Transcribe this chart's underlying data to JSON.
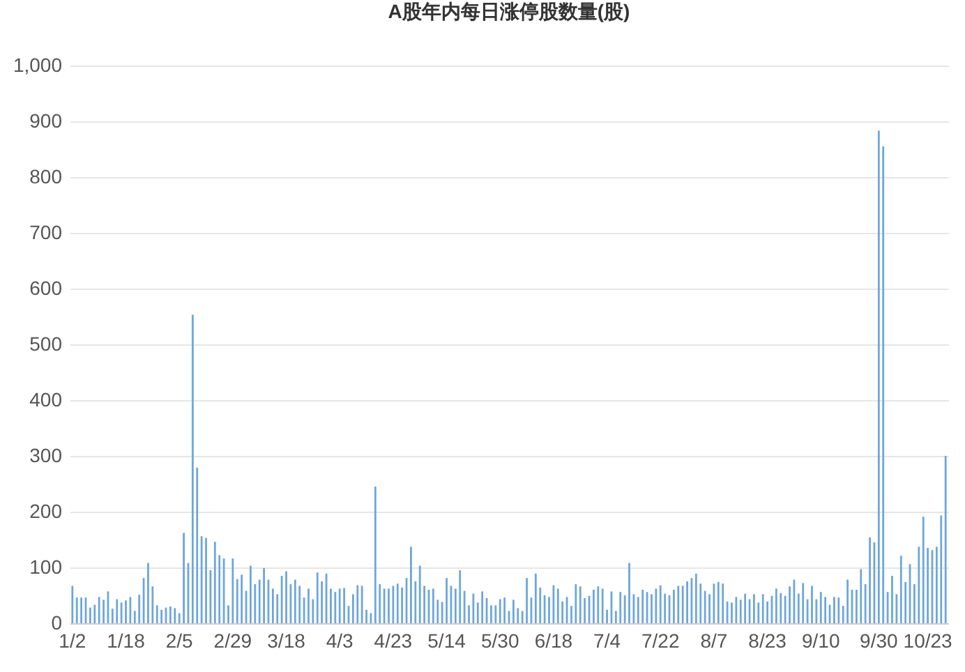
{
  "chart_data": {
    "type": "bar",
    "title": "A股年内每日涨停股数量(股)",
    "categories": [
      "1/2",
      null,
      null,
      null,
      null,
      null,
      null,
      null,
      null,
      null,
      null,
      null,
      "1/18",
      null,
      null,
      null,
      null,
      null,
      null,
      null,
      null,
      null,
      null,
      null,
      "2/5",
      null,
      null,
      null,
      null,
      null,
      null,
      null,
      null,
      null,
      null,
      null,
      "2/29",
      null,
      null,
      null,
      null,
      null,
      null,
      null,
      null,
      null,
      null,
      null,
      "3/18",
      null,
      null,
      null,
      null,
      null,
      null,
      null,
      null,
      null,
      null,
      null,
      "4/3",
      null,
      null,
      null,
      null,
      null,
      null,
      null,
      null,
      null,
      null,
      null,
      "4/23",
      null,
      null,
      null,
      null,
      null,
      null,
      null,
      null,
      null,
      null,
      null,
      "5/14",
      null,
      null,
      null,
      null,
      null,
      null,
      null,
      null,
      null,
      null,
      null,
      "5/30",
      null,
      null,
      null,
      null,
      null,
      null,
      null,
      null,
      null,
      null,
      null,
      "6/18",
      null,
      null,
      null,
      null,
      null,
      null,
      null,
      null,
      null,
      null,
      null,
      "7/4",
      null,
      null,
      null,
      null,
      null,
      null,
      null,
      null,
      null,
      null,
      null,
      "7/22",
      null,
      null,
      null,
      null,
      null,
      null,
      null,
      null,
      null,
      null,
      null,
      "8/7",
      null,
      null,
      null,
      null,
      null,
      null,
      null,
      null,
      null,
      null,
      null,
      "8/23",
      null,
      null,
      null,
      null,
      null,
      null,
      null,
      null,
      null,
      null,
      null,
      "9/10",
      null,
      null,
      null,
      null,
      null,
      null,
      null,
      null,
      null,
      null,
      null,
      null,
      "9/30",
      null,
      null,
      null,
      null,
      null,
      null,
      null,
      null,
      null,
      null,
      "10/23",
      null,
      null,
      null,
      null
    ],
    "values": [
      67,
      46,
      46,
      46,
      28,
      33,
      47,
      42,
      57,
      26,
      43,
      37,
      41,
      47,
      22,
      51,
      81,
      108,
      66,
      32,
      24,
      28,
      30,
      27,
      18,
      162,
      108,
      553,
      279,
      156,
      153,
      95,
      146,
      122,
      116,
      32,
      116,
      79,
      87,
      58,
      103,
      70,
      78,
      99,
      78,
      62,
      52,
      85,
      93,
      70,
      78,
      67,
      46,
      62,
      43,
      91,
      75,
      89,
      62,
      56,
      62,
      63,
      31,
      52,
      68,
      67,
      24,
      18,
      245,
      70,
      62,
      62,
      67,
      71,
      64,
      81,
      137,
      75,
      103,
      67,
      60,
      62,
      42,
      38,
      81,
      67,
      62,
      95,
      58,
      32,
      53,
      37,
      57,
      45,
      32,
      32,
      43,
      46,
      22,
      42,
      27,
      22,
      81,
      46,
      89,
      64,
      50,
      47,
      68,
      62,
      39,
      47,
      31,
      70,
      66,
      45,
      49,
      60,
      66,
      62,
      24,
      57,
      22,
      56,
      50,
      108,
      52,
      47,
      60,
      56,
      52,
      62,
      68,
      53,
      50,
      60,
      67,
      67,
      75,
      81,
      89,
      71,
      58,
      52,
      71,
      74,
      71,
      39,
      37,
      47,
      42,
      53,
      43,
      52,
      37,
      52,
      39,
      49,
      62,
      54,
      49,
      66,
      78,
      53,
      72,
      43,
      67,
      43,
      56,
      47,
      33,
      47,
      46,
      31,
      78,
      60,
      60,
      97,
      70,
      154,
      145,
      883,
      855,
      56,
      85,
      52,
      121,
      74,
      106,
      70,
      137,
      191,
      135,
      131,
      137,
      193,
      300
    ],
    "color": "#6ea6dc",
    "ylim": [
      0,
      1000
    ],
    "yticks": [
      0,
      100,
      200,
      300,
      400,
      500,
      600,
      700,
      800,
      900,
      {
        "value": 1000,
        "label": "1,000"
      }
    ],
    "grid": "y"
  }
}
